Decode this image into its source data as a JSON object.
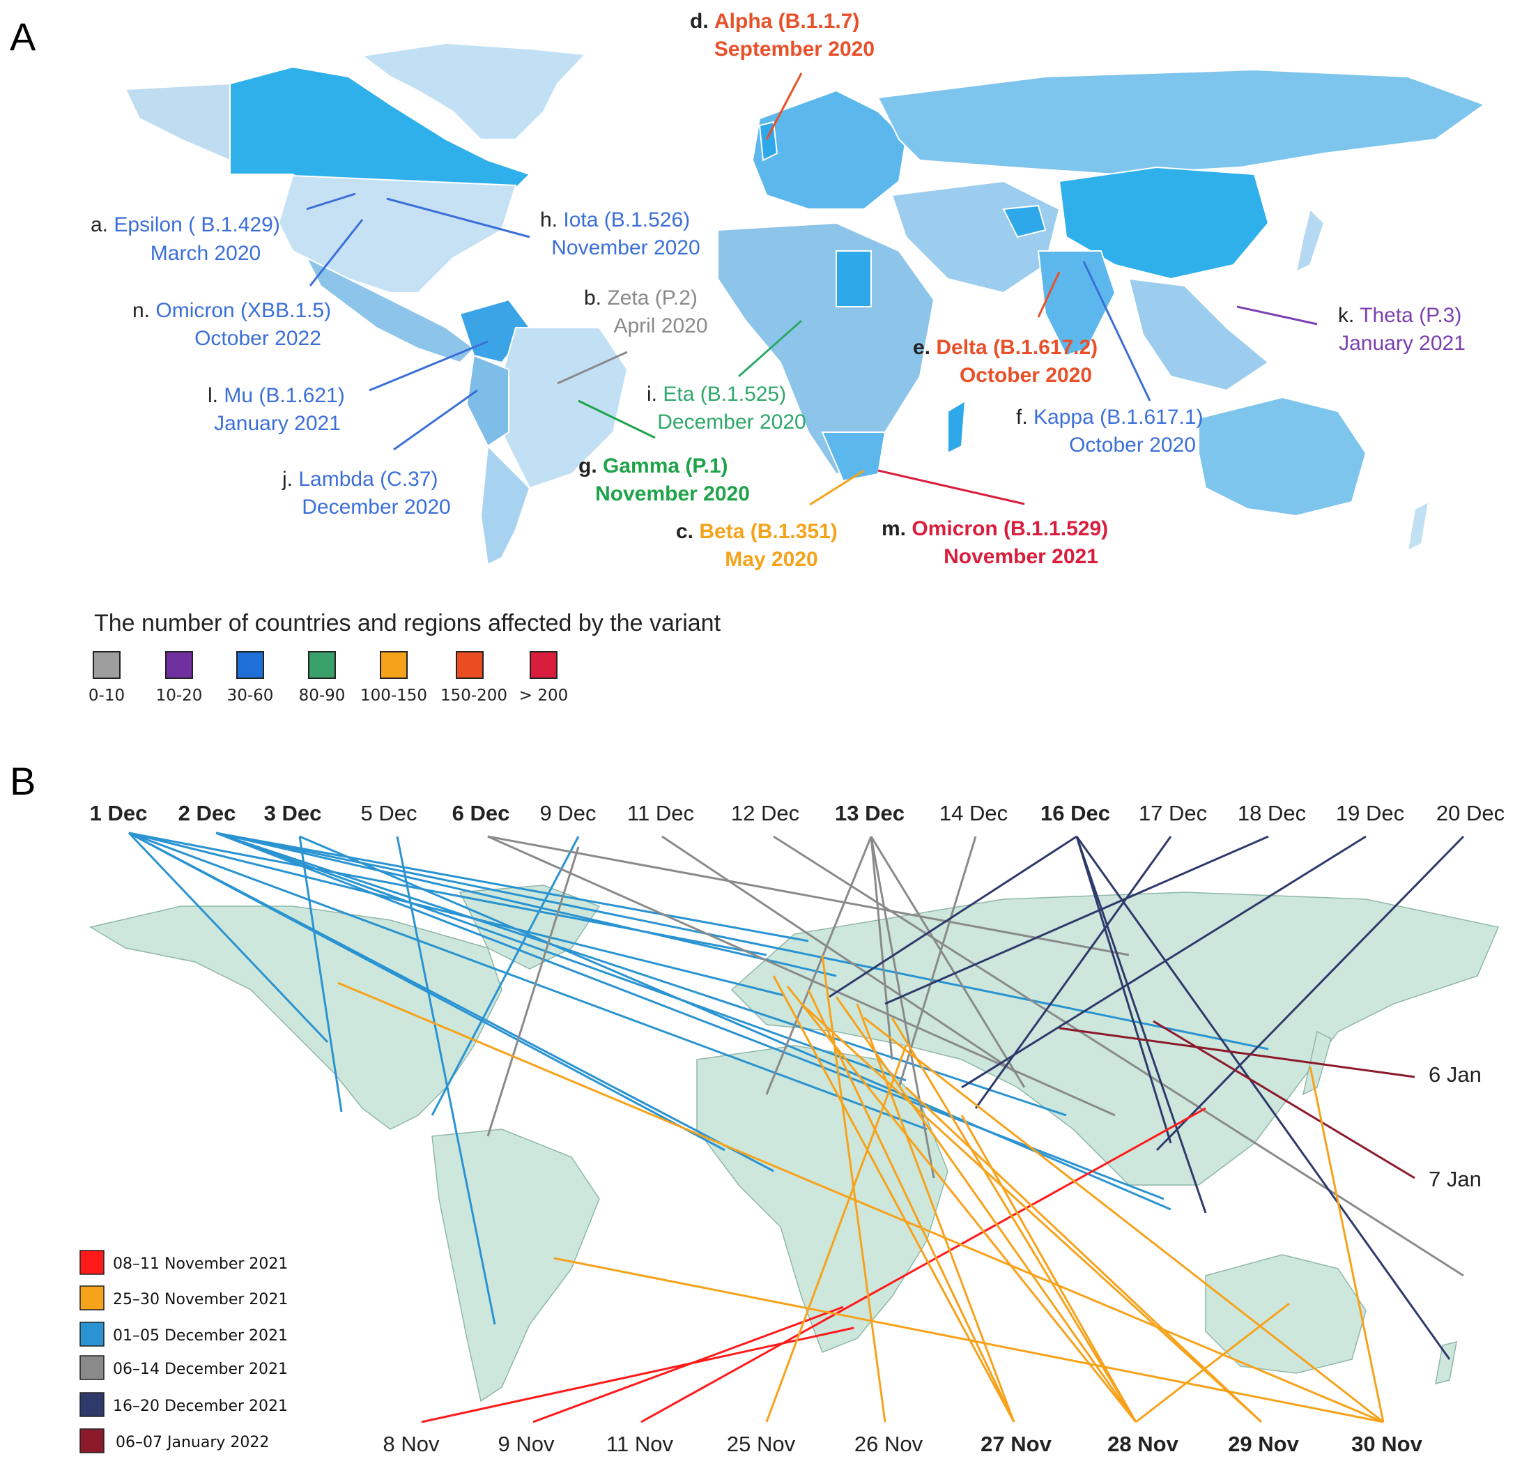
{
  "panel_a": {
    "label": "A",
    "variants": [
      {
        "letter": "a.",
        "name": "Epsilon ( B.1.429)",
        "date": "March 2020",
        "color": "#3b6fd8",
        "bold": false
      },
      {
        "letter": "h.",
        "name": "Iota (B.1.526)",
        "date": "November 2020",
        "color": "#3b6fd8",
        "bold": false
      },
      {
        "letter": "n.",
        "name": "Omicron (XBB.1.5)",
        "date": "October 2022",
        "color": "#3b6fd8",
        "bold": false
      },
      {
        "letter": "b.",
        "name": "Zeta (P.2)",
        "date": "April 2020",
        "color": "#8a8a8a",
        "bold": false
      },
      {
        "letter": "d.",
        "name": "Alpha (B.1.1.7)",
        "date": "September 2020",
        "color": "#e8502a",
        "bold": true
      },
      {
        "letter": "l.",
        "name": "Mu (B.1.621)",
        "date": "January 2021",
        "color": "#3b6fd8",
        "bold": false
      },
      {
        "letter": "i.",
        "name": "Eta (B.1.525)",
        "date": "December 2020",
        "color": "#2ea86a",
        "bold": false
      },
      {
        "letter": "e.",
        "name": "Delta (B.1.617.2)",
        "date": "October 2020",
        "color": "#e8502a",
        "bold": true
      },
      {
        "letter": "k.",
        "name": "Theta (P.3)",
        "date": "January 2021",
        "color": "#7a3fb0",
        "bold": false
      },
      {
        "letter": "f.",
        "name": "Kappa (B.1.617.1)",
        "date": "October 2020",
        "color": "#3b6fd8",
        "bold": false
      },
      {
        "letter": "j.",
        "name": "Lambda (C.37)",
        "date": "December 2020",
        "color": "#3b6fd8",
        "bold": false
      },
      {
        "letter": "g.",
        "name": "Gamma (P.1)",
        "date": "November 2020",
        "color": "#1fa34a",
        "bold": true
      },
      {
        "letter": "c.",
        "name": "Beta (B.1.351)",
        "date": "May 2020",
        "color": "#f5a31a",
        "bold": true
      },
      {
        "letter": "m.",
        "name": "Omicron (B.1.1.529)",
        "date": "November 2021",
        "color": "#d81e3c",
        "bold": true
      }
    ],
    "legend": {
      "title": "The number of countries and regions affected by the variant",
      "items": [
        {
          "range": "0-10",
          "color": "#9e9e9e"
        },
        {
          "range": "10-20",
          "color": "#7030a0"
        },
        {
          "range": "30-60",
          "color": "#1f6fd8"
        },
        {
          "range": "80-90",
          "color": "#3aa06a"
        },
        {
          "range": "100-150",
          "color": "#f7a21b"
        },
        {
          "range": "150-200",
          "color": "#ea4d22"
        },
        {
          "range": "> 200",
          "color": "#d81e3c"
        }
      ]
    }
  },
  "panel_b": {
    "label": "B",
    "top_dates": [
      {
        "label": "1 Dec",
        "bold": true
      },
      {
        "label": "2 Dec",
        "bold": true
      },
      {
        "label": "3 Dec",
        "bold": true
      },
      {
        "label": "5 Dec",
        "bold": false
      },
      {
        "label": "6 Dec",
        "bold": true
      },
      {
        "label": "9 Dec",
        "bold": false
      },
      {
        "label": "11 Dec",
        "bold": false
      },
      {
        "label": "12 Dec",
        "bold": false
      },
      {
        "label": "13 Dec",
        "bold": true
      },
      {
        "label": "14 Dec",
        "bold": false
      },
      {
        "label": "16 Dec",
        "bold": true
      },
      {
        "label": "17 Dec",
        "bold": false
      },
      {
        "label": "18 Dec",
        "bold": false
      },
      {
        "label": "19 Dec",
        "bold": false
      },
      {
        "label": "20 Dec",
        "bold": false
      }
    ],
    "bottom_dates": [
      {
        "label": "8 Nov",
        "bold": false
      },
      {
        "label": "9 Nov",
        "bold": false
      },
      {
        "label": "11 Nov",
        "bold": false
      },
      {
        "label": "25 Nov",
        "bold": false
      },
      {
        "label": "26 Nov",
        "bold": false
      },
      {
        "label": "27 Nov",
        "bold": true
      },
      {
        "label": "28 Nov",
        "bold": true
      },
      {
        "label": "29 Nov",
        "bold": true
      },
      {
        "label": "30 Nov",
        "bold": true
      }
    ],
    "right_dates": [
      {
        "label": "6 Jan"
      },
      {
        "label": "7 Jan"
      }
    ],
    "legend": [
      {
        "period": "08–11 November 2021",
        "color": "#ff1a1a"
      },
      {
        "period": "25–30 November 2021",
        "color": "#f7a21b"
      },
      {
        "period": "01–05 December 2021",
        "color": "#2a93d1"
      },
      {
        "period": "06–14 December 2021",
        "color": "#8a8a8a"
      },
      {
        "period": "16–20 December 2021",
        "color": "#2e3a6b"
      },
      {
        "period": "06–07 January 2022",
        "color": "#8b1a2b"
      }
    ]
  }
}
